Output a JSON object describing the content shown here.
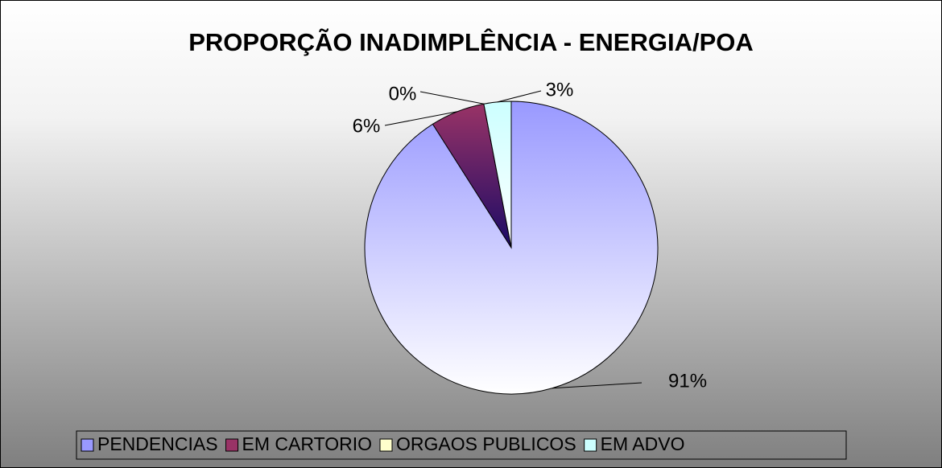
{
  "chart_data": {
    "type": "pie",
    "title": "PROPORÇÃO INADIMPLÊNCIA - ENERGIA/POA",
    "categories": [
      "PENDENCIAS",
      "EM CARTORIO",
      "ORGAOS PUBLICOS",
      "EM ADVO"
    ],
    "values": [
      91,
      6,
      0,
      3
    ],
    "value_labels": [
      "91%",
      "6%",
      "0%",
      "3%"
    ],
    "colors": [
      "#9999ff",
      "#993366",
      "#ffffcc",
      "#ccffff"
    ],
    "legend": "bottom"
  }
}
